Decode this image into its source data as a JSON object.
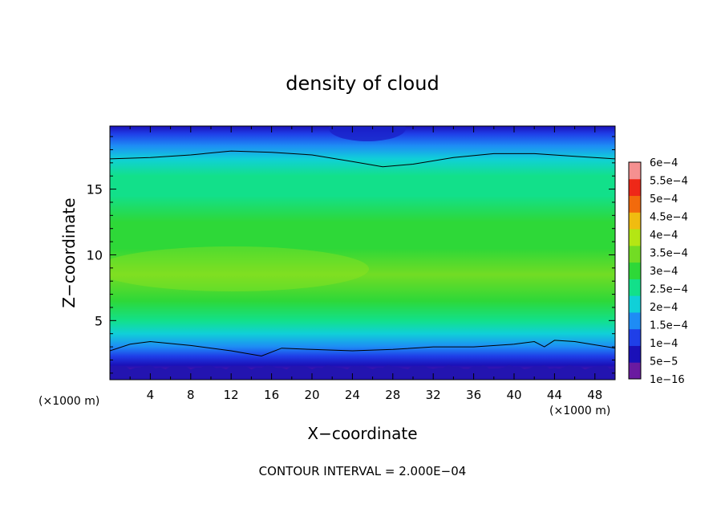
{
  "chart_data": {
    "type": "heatmap",
    "title": "density of cloud",
    "xlabel": "X−coordinate",
    "ylabel": "Z−coordinate",
    "x_unit_left": "(×1000 m)",
    "x_unit_right": "(×1000 m)",
    "footer": "CONTOUR INTERVAL = 2.000E−04",
    "xlim": [
      0,
      50
    ],
    "ylim": [
      0.5,
      19.8
    ],
    "x_ticks": [
      4,
      8,
      12,
      16,
      20,
      24,
      28,
      32,
      36,
      40,
      44,
      48
    ],
    "y_ticks": [
      5,
      10,
      15
    ],
    "colorbar": {
      "labels": [
        "1e−16",
        "5e−5",
        "1e−4",
        "1.5e−4",
        "2e−4",
        "2.5e−4",
        "3e−4",
        "3.5e−4",
        "4e−4",
        "4.5e−4",
        "5e−4",
        "5.5e−4",
        "6e−4"
      ],
      "colors": [
        "#6a1aa0",
        "#1a10b8",
        "#1f3fe8",
        "#1e8cf5",
        "#10d0d8",
        "#12e08a",
        "#2ed838",
        "#72dc24",
        "#b4e614",
        "#f0bc10",
        "#f26a0c",
        "#ee2818",
        "#f59090"
      ]
    },
    "z_profile": [
      {
        "z": 0.5,
        "v": 0
      },
      {
        "z": 1.0,
        "v": 3e-05
      },
      {
        "z": 1.6,
        "v": 6e-05
      },
      {
        "z": 2.3,
        "v": 0.0001
      },
      {
        "z": 3.0,
        "v": 0.00015
      },
      {
        "z": 4.0,
        "v": 0.00021
      },
      {
        "z": 5.0,
        "v": 0.00026
      },
      {
        "z": 6.5,
        "v": 0.00031
      },
      {
        "z": 8.5,
        "v": 0.00035
      },
      {
        "z": 10.5,
        "v": 0.00034
      },
      {
        "z": 12.5,
        "v": 0.00031
      },
      {
        "z": 14.5,
        "v": 0.00029
      },
      {
        "z": 16.0,
        "v": 0.00026
      },
      {
        "z": 17.3,
        "v": 0.0002
      },
      {
        "z": 18.3,
        "v": 0.00016
      },
      {
        "z": 19.2,
        "v": 0.00012
      },
      {
        "z": 19.8,
        "v": 9e-05
      }
    ],
    "contour_2e-4": {
      "upper": [
        [
          0,
          17.3
        ],
        [
          4,
          17.4
        ],
        [
          8,
          17.6
        ],
        [
          12,
          17.9
        ],
        [
          16,
          17.8
        ],
        [
          20,
          17.6
        ],
        [
          24,
          17.1
        ],
        [
          27,
          16.7
        ],
        [
          30,
          16.9
        ],
        [
          34,
          17.4
        ],
        [
          38,
          17.7
        ],
        [
          42,
          17.7
        ],
        [
          46,
          17.5
        ],
        [
          50,
          17.3
        ]
      ],
      "lower": [
        [
          0,
          2.7
        ],
        [
          2,
          3.2
        ],
        [
          4,
          3.4
        ],
        [
          8,
          3.1
        ],
        [
          12,
          2.7
        ],
        [
          15,
          2.3
        ],
        [
          17,
          2.9
        ],
        [
          20,
          2.8
        ],
        [
          24,
          2.7
        ],
        [
          28,
          2.8
        ],
        [
          32,
          3.0
        ],
        [
          36,
          3.0
        ],
        [
          40,
          3.2
        ],
        [
          42,
          3.4
        ],
        [
          43,
          3.0
        ],
        [
          44,
          3.5
        ],
        [
          46,
          3.4
        ],
        [
          50,
          2.9
        ]
      ]
    }
  }
}
